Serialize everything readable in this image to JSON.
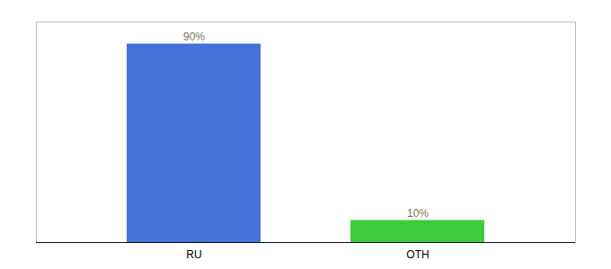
{
  "chart_data": {
    "type": "bar",
    "categories": [
      "RU",
      "OTH"
    ],
    "values": [
      90,
      10
    ],
    "colors": [
      "#4472d9",
      "#3dcc3d"
    ],
    "value_labels": [
      "90%",
      "10%"
    ],
    "data_labels": true,
    "ylim": [
      0,
      100
    ],
    "tick_labels": "x"
  }
}
